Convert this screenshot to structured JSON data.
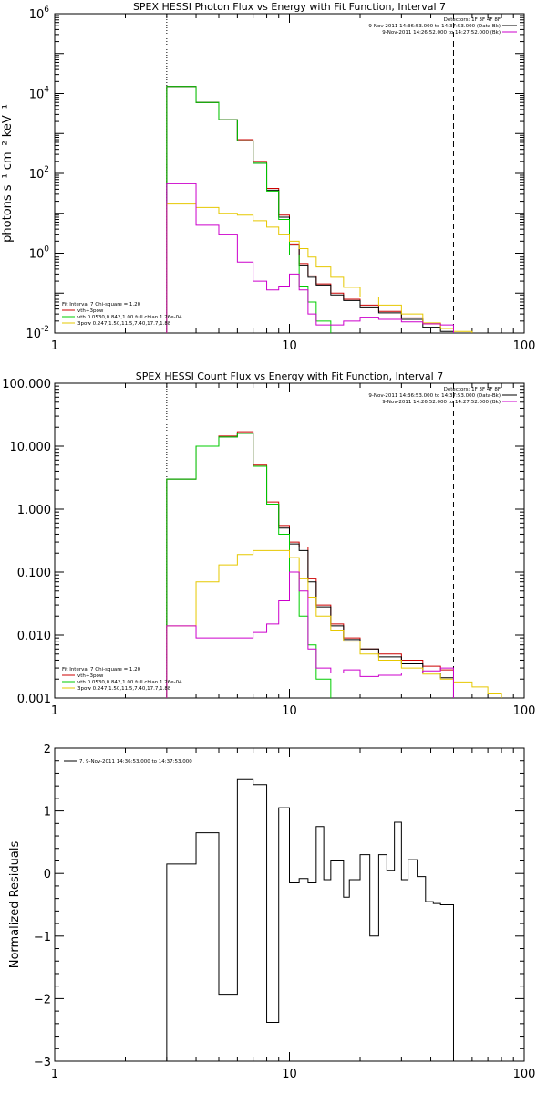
{
  "chart_data": [
    {
      "type": "line",
      "title": "SPEX HESSI Photon Flux vs Energy with Fit Function, Interval 7",
      "xlabel": "",
      "ylabel": "photons s⁻¹ cm⁻² keV⁻¹",
      "xscale": "log",
      "yscale": "log",
      "xlim": [
        1,
        100
      ],
      "ylim": [
        0.01,
        1000000
      ],
      "xticks": [
        "1",
        "10",
        "100"
      ],
      "yticks": [
        {
          "v": 0.01,
          "b": "10",
          "e": "-2"
        },
        {
          "v": 1,
          "b": "10",
          "e": "0"
        },
        {
          "v": 100,
          "b": "10",
          "e": "2"
        },
        {
          "v": 10000,
          "b": "10",
          "e": "4"
        },
        {
          "v": 1000000,
          "b": "10",
          "e": "6"
        }
      ],
      "vlines": [
        {
          "x": 3,
          "style": "dotted"
        },
        {
          "x": 50,
          "style": "dashed"
        }
      ],
      "legend_top_right": [
        "Detectors: 1F 3F 4F 8F",
        "9-Nov-2011 14:36:53.000 to 14:37:53.000 (Data-Bk)",
        "9-Nov-2011 14:26:52.000 to 14:27:52.000 (Bk)"
      ],
      "legend_top_right_colors": [
        "#000000",
        "#000000",
        "#cc00cc"
      ],
      "legend_bottom_left_header": "Fit Interval 7   Chi-square = 1.20",
      "legend_bottom_left": [
        "vth+3pow",
        "vth 0.0530,0.842,1.00  full chian 1.26e-04",
        "3pow 0.247,1.50,11.5,7.40,17.7,1.88"
      ],
      "legend_bottom_left_colors": [
        "#cc0000",
        "#00cc00",
        "#e6c800"
      ],
      "series": [
        {
          "name": "vth+3pow",
          "color": "#cc0000",
          "edges": [
            3,
            4,
            5,
            6,
            7,
            8,
            9,
            10,
            11,
            12,
            13,
            15,
            17,
            20,
            24,
            30,
            37,
            44,
            50
          ],
          "values": [
            15000,
            6000,
            2200,
            700,
            200,
            42,
            9,
            1.7,
            0.55,
            0.27,
            0.17,
            0.1,
            0.07,
            0.05,
            0.035,
            0.024,
            0.017,
            0.013
          ]
        },
        {
          "name": "Data-Bk",
          "color": "#000000",
          "edges": [
            3,
            4,
            5,
            6,
            7,
            8,
            9,
            10,
            11,
            12,
            13,
            15,
            17,
            20,
            24,
            30,
            37,
            44,
            50
          ],
          "values": [
            15000,
            6000,
            2200,
            650,
            180,
            38,
            8,
            1.6,
            0.5,
            0.25,
            0.16,
            0.09,
            0.065,
            0.045,
            0.032,
            0.022,
            0.014,
            0.011
          ]
        },
        {
          "name": "vth",
          "color": "#00cc00",
          "edges": [
            3,
            4,
            5,
            6,
            7,
            8,
            9,
            10,
            11,
            12,
            13,
            15
          ],
          "values": [
            15000,
            6000,
            2200,
            650,
            180,
            36,
            7,
            0.9,
            0.15,
            0.06,
            0.02
          ]
        },
        {
          "name": "3pow",
          "color": "#e6c800",
          "edges": [
            3,
            4,
            5,
            6,
            7,
            8,
            9,
            10,
            11,
            12,
            13,
            15,
            17,
            20,
            24,
            30,
            37,
            44,
            50,
            60
          ],
          "values": [
            17,
            14,
            10,
            9,
            6.5,
            4.5,
            3,
            2,
            1.3,
            0.8,
            0.45,
            0.25,
            0.14,
            0.08,
            0.05,
            0.03,
            0.018,
            0.013,
            0.011
          ]
        },
        {
          "name": "Bk",
          "color": "#cc00cc",
          "edges": [
            3,
            4,
            5,
            6,
            7,
            8,
            9,
            10,
            11,
            12,
            13,
            15,
            17,
            20,
            24,
            30,
            37,
            44,
            50
          ],
          "values": [
            55,
            5,
            3,
            0.6,
            0.2,
            0.12,
            0.15,
            0.3,
            0.12,
            0.03,
            0.016,
            0.016,
            0.02,
            0.025,
            0.022,
            0.019,
            0.017,
            0.016
          ]
        }
      ]
    },
    {
      "type": "line",
      "title": "SPEX HESSI Count Flux vs Energy with Fit Function, Interval 7",
      "xlabel": "",
      "ylabel": "",
      "xscale": "log",
      "yscale": "log",
      "xlim": [
        1,
        100
      ],
      "ylim": [
        0.001,
        100
      ],
      "xticks": [
        "1",
        "10",
        "100"
      ],
      "yticks": [
        {
          "v": 0.001,
          "label": "0.001"
        },
        {
          "v": 0.01,
          "label": "0.010"
        },
        {
          "v": 0.1,
          "label": "0.100"
        },
        {
          "v": 1,
          "label": "1.000"
        },
        {
          "v": 10,
          "label": "10.000"
        },
        {
          "v": 100,
          "label": "100.000"
        }
      ],
      "vlines": [
        {
          "x": 3,
          "style": "dotted"
        },
        {
          "x": 50,
          "style": "dashed"
        }
      ],
      "legend_top_right": [
        "Detectors: 1F 3F 4F 8F",
        "9-Nov-2011 14:36:53.000 to 14:37:53.000 (Data-Bk)",
        "9-Nov-2011 14:26:52.000 to 14:27:52.000 (Bk)"
      ],
      "legend_top_right_colors": [
        "#000000",
        "#000000",
        "#cc00cc"
      ],
      "legend_bottom_left_header": "Fit Interval 7   Chi-square = 1.20",
      "legend_bottom_left": [
        "vth+3pow",
        "vth 0.0530,0.842,1.00  full chian 1.26e-04",
        "3pow 0.247,1.50,11.5,7.40,17.7,1.88"
      ],
      "legend_bottom_left_colors": [
        "#cc0000",
        "#00cc00",
        "#e6c800"
      ],
      "series": [
        {
          "name": "vth+3pow",
          "color": "#cc0000",
          "edges": [
            3,
            4,
            5,
            6,
            7,
            8,
            9,
            10,
            11,
            12,
            13,
            15,
            17,
            20,
            24,
            30,
            37,
            44,
            50
          ],
          "values": [
            3,
            10,
            14.5,
            17,
            5,
            1.3,
            0.55,
            0.3,
            0.25,
            0.08,
            0.03,
            0.015,
            0.009,
            0.006,
            0.005,
            0.004,
            0.0032,
            0.0028
          ]
        },
        {
          "name": "Data-Bk",
          "color": "#000000",
          "edges": [
            3,
            4,
            5,
            6,
            7,
            8,
            9,
            10,
            11,
            12,
            13,
            15,
            17,
            20,
            24,
            30,
            37,
            44,
            50
          ],
          "values": [
            3,
            10,
            14,
            16,
            4.8,
            1.2,
            0.5,
            0.28,
            0.22,
            0.07,
            0.028,
            0.014,
            0.0085,
            0.006,
            0.0045,
            0.0035,
            0.0025,
            0.0021
          ]
        },
        {
          "name": "vth",
          "color": "#00cc00",
          "edges": [
            3,
            4,
            5,
            6,
            7,
            8,
            9,
            10,
            11,
            12,
            13,
            15
          ],
          "values": [
            3,
            10,
            14,
            16,
            4.8,
            1.2,
            0.4,
            0.1,
            0.02,
            0.007,
            0.002
          ]
        },
        {
          "name": "3pow",
          "color": "#e6c800",
          "edges": [
            3,
            4,
            5,
            6,
            7,
            8,
            9,
            10,
            11,
            12,
            13,
            15,
            17,
            20,
            24,
            30,
            37,
            44,
            50,
            60,
            70,
            80
          ],
          "values": [
            0.014,
            0.07,
            0.13,
            0.19,
            0.22,
            0.22,
            0.22,
            0.17,
            0.08,
            0.04,
            0.02,
            0.012,
            0.008,
            0.005,
            0.004,
            0.003,
            0.0024,
            0.002,
            0.0018,
            0.0015,
            0.0012
          ]
        },
        {
          "name": "Bk",
          "color": "#cc00cc",
          "edges": [
            3,
            4,
            5,
            6,
            7,
            8,
            9,
            10,
            11,
            12,
            13,
            15,
            17,
            20,
            24,
            30,
            37,
            44,
            50
          ],
          "values": [
            0.014,
            0.009,
            0.009,
            0.009,
            0.011,
            0.015,
            0.035,
            0.1,
            0.05,
            0.006,
            0.003,
            0.0025,
            0.0028,
            0.0022,
            0.0023,
            0.0025,
            0.0027,
            0.003
          ]
        }
      ]
    },
    {
      "type": "line",
      "title": "",
      "xlabel": "",
      "ylabel": "Normalized Residuals",
      "xscale": "log",
      "yscale": "linear",
      "xlim": [
        1,
        100
      ],
      "ylim": [
        -3,
        2
      ],
      "xticks": [
        "1",
        "10",
        "100"
      ],
      "yticks": [
        {
          "v": -3,
          "label": "−3"
        },
        {
          "v": -2,
          "label": "−2"
        },
        {
          "v": -1,
          "label": "−1"
        },
        {
          "v": 0,
          "label": "0"
        },
        {
          "v": 1,
          "label": "1"
        },
        {
          "v": 2,
          "label": "2"
        }
      ],
      "legend": "7.  9-Nov-2011 14:36:53.000 to 14:37:53.000",
      "series": [
        {
          "name": "residuals",
          "color": "#000000",
          "edges": [
            3,
            4,
            5,
            6,
            7,
            8,
            9,
            10,
            11,
            12,
            13,
            14,
            15,
            17,
            18,
            20,
            22,
            24,
            26,
            28,
            30,
            32,
            35,
            38,
            41,
            44,
            47,
            50
          ],
          "values": [
            0.15,
            0.65,
            -1.93,
            1.5,
            1.42,
            -2.38,
            1.05,
            -0.15,
            -0.08,
            -0.15,
            0.75,
            -0.1,
            0.2,
            -0.38,
            -0.1,
            0.3,
            -1.0,
            0.3,
            0.05,
            0.82,
            -0.1,
            0.22,
            -0.05,
            -0.45,
            -0.48,
            -0.5,
            -0.5
          ]
        }
      ]
    }
  ]
}
